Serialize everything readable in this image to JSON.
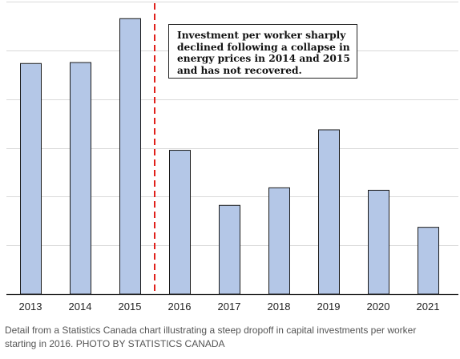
{
  "chart_data": {
    "type": "bar",
    "categories": [
      "2013",
      "2014",
      "2015",
      "2016",
      "2017",
      "2018",
      "2019",
      "2020",
      "2021"
    ],
    "values": [
      4.73,
      4.75,
      5.65,
      2.95,
      1.82,
      2.18,
      3.37,
      2.13,
      1.37
    ],
    "title": "",
    "xlabel": "",
    "ylabel": "",
    "ylim": [
      0,
      6
    ],
    "grid": true,
    "y_tick_labels_shown": false,
    "bar_color": "#b4c7e7",
    "bar_edge_color": "#1a1a1a",
    "marker": {
      "between": [
        "2015",
        "2016"
      ],
      "style": "dashed",
      "color": "#e0201b"
    },
    "annotation": {
      "lines": [
        "Investment per worker sharply",
        "declined following a collapse in",
        "energy prices in 2014 and 2015",
        "and has not recovered."
      ]
    }
  },
  "caption": {
    "lines": [
      "Detail from a Statistics Canada chart illustrating a steep dropoff in capital investments per worker",
      "starting in 2016. PHOTO BY STATISTICS CANADA"
    ]
  }
}
